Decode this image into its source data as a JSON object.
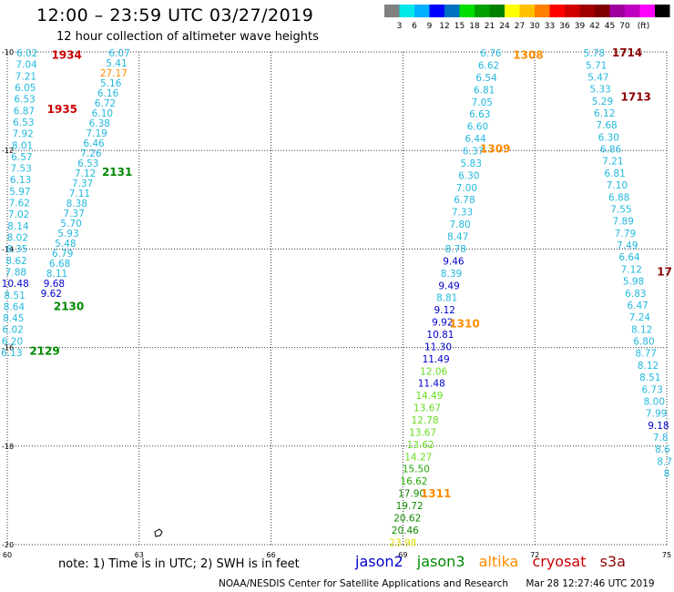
{
  "header": {
    "title": "12:00 – 23:59 UTC 03/27/2019",
    "subtitle": "12 hour collection of altimeter wave heights"
  },
  "colorbar": {
    "colors": [
      "#808080",
      "#00e8e8",
      "#00b0ff",
      "#0000ff",
      "#0070c0",
      "#00dd00",
      "#00a000",
      "#008000",
      "#ffff00",
      "#ffc000",
      "#ff8000",
      "#ff0000",
      "#d00000",
      "#a00000",
      "#800000",
      "#a000a0",
      "#c000c0",
      "#ff00ff",
      "#000000"
    ],
    "labels": [
      "3",
      "6",
      "9",
      "12",
      "15",
      "18",
      "21",
      "24",
      "27",
      "30",
      "33",
      "36",
      "39",
      "42",
      "45",
      "70",
      "(ft)"
    ]
  },
  "chart_data": {
    "type": "scatter",
    "xlim": [
      60,
      75
    ],
    "ylim": [
      -20,
      -10
    ],
    "x_ticks": [
      "60",
      "63",
      "66",
      "69",
      "72",
      "75"
    ],
    "y_ticks": [
      "-10",
      "-12",
      "-14",
      "-16",
      "-18",
      "-20"
    ],
    "grid": true,
    "series_colors": {
      "jason2": "#0000cc",
      "jason3": "#008800",
      "altika": "#ff8c00",
      "cryosat": "#cc0000",
      "s3a": "#8b0000"
    },
    "tracks": [
      {
        "id": "track-a",
        "x0": 60.45,
        "x1": 60.1,
        "values": [
          "6.02",
          "7.04",
          "7.21",
          "6.05",
          "6.53",
          "6.87",
          "6.53",
          "7.92",
          "8.01",
          "6.57",
          "7.53",
          "6.13",
          "5.97",
          "7.62",
          "7.02",
          "8.14",
          "8.02",
          "8.35",
          "8.62",
          "7.88",
          "10.48",
          "8.51",
          "8.64",
          "8.45",
          "6.02",
          "6.20",
          "6.13"
        ]
      },
      {
        "id": "track-b",
        "x0": 62.55,
        "x1": 61.0,
        "values": [
          "6.07",
          "5.41",
          "27.17",
          "5.16",
          "6.16",
          "6.72",
          "6.10",
          "6.38",
          "7.19",
          "6.46",
          "7.26",
          "6.53",
          "7.12",
          "7.37",
          "7.11",
          "8.38",
          "7.37",
          "5.70",
          "5.93",
          "5.48",
          "6.79",
          "6.68",
          "8.11",
          "9.68",
          "9.62"
        ]
      },
      {
        "id": "track-c",
        "x0": 71.0,
        "x1": 69.0,
        "values": [
          "6.76",
          "6.62",
          "6.54",
          "6.81",
          "7.05",
          "6.63",
          "6.60",
          "6.44",
          "6.37",
          "5.83",
          "6.30",
          "7.00",
          "6.78",
          "7.33",
          "7.80",
          "8.47",
          "8.78",
          "9.46",
          "8.39",
          "9.49",
          "8.81",
          "9.12",
          "9.92",
          "10.81",
          "11.30",
          "11.49",
          "12.06",
          "11.48",
          "14.49",
          "13.67",
          "12.78",
          "13.67",
          "13.62",
          "14.27",
          "15.50",
          "16.62",
          "17.90",
          "19.72",
          "20.62",
          "20.46",
          "23.98"
        ]
      },
      {
        "id": "track-d",
        "x0": 73.35,
        "x1": 75.0,
        "values": [
          "5.78",
          "5.71",
          "5.47",
          "5.33",
          "5.29",
          "6.12",
          "7.68",
          "6.30",
          "6.86",
          "7.21",
          "6.81",
          "7.10",
          "6.88",
          "7.55",
          "7.89",
          "7.79",
          "7.49",
          "6.64",
          "7.12",
          "5.98",
          "6.83",
          "6.47",
          "7.24",
          "8.12",
          "6.80",
          "8.77",
          "8.12",
          "8.51",
          "6.73",
          "8.00",
          "7.99",
          "9.18",
          "7.8",
          "8.6",
          "8.7",
          "8"
        ]
      }
    ],
    "value_colors": {
      "27.17": "#ff8c00",
      "9.68": "#0000cc",
      "9.62": "#0000cc",
      "10.48": "#0000cc",
      "9.46": "#0000cc",
      "9.49": "#0000cc",
      "9.12": "#0000cc",
      "9.92": "#0000cc",
      "10.81": "#0000cc",
      "11.30": "#0000cc",
      "11.49": "#0000cc",
      "11.48": "#0000cc",
      "9.18": "#0000cc",
      "12.06": "#66dd22",
      "14.49": "#66dd22",
      "13.67": "#66dd22",
      "12.78": "#66dd22",
      "13.62": "#66dd22",
      "14.27": "#66dd22",
      "15.50": "#22aa00",
      "16.62": "#22aa00",
      "17.90": "#118800",
      "19.72": "#118800",
      "20.62": "#118800",
      "20.46": "#118800",
      "23.98": "#dddd00"
    },
    "pass_labels": [
      {
        "text": "1934",
        "lon": 61.35,
        "lat": -10.05,
        "color": "#cc0000"
      },
      {
        "text": "1935",
        "lon": 61.25,
        "lat": -11.15,
        "color": "#cc0000"
      },
      {
        "text": "2131",
        "lon": 62.5,
        "lat": -12.42,
        "color": "#008800"
      },
      {
        "text": "2130",
        "lon": 61.4,
        "lat": -15.15,
        "color": "#008800"
      },
      {
        "text": "2129",
        "lon": 60.85,
        "lat": -16.05,
        "color": "#008800"
      },
      {
        "text": "1308",
        "lon": 71.85,
        "lat": -10.05,
        "color": "#ff8c00"
      },
      {
        "text": "1309",
        "lon": 71.1,
        "lat": -11.95,
        "color": "#ff8c00"
      },
      {
        "text": "1310",
        "lon": 70.4,
        "lat": -15.5,
        "color": "#ff8c00"
      },
      {
        "text": "1311",
        "lon": 69.75,
        "lat": -18.95,
        "color": "#ff8c00"
      },
      {
        "text": "1714",
        "lon": 74.1,
        "lat": -10.0,
        "color": "#8b0000"
      },
      {
        "text": "1713",
        "lon": 74.3,
        "lat": -10.9,
        "color": "#8b0000"
      },
      {
        "text": "17",
        "lon": 74.95,
        "lat": -14.45,
        "color": "#8b0000"
      }
    ]
  },
  "note": {
    "text": "note:  1) Time is in UTC;  2) SWH is in feet"
  },
  "legend": {
    "items": [
      {
        "label": "jason2",
        "color": "#0000cc"
      },
      {
        "label": "jason3",
        "color": "#008800"
      },
      {
        "label": "altika",
        "color": "#ff8c00"
      },
      {
        "label": "cryosat",
        "color": "#cc0000"
      },
      {
        "label": "s3a",
        "color": "#8b0000"
      }
    ]
  },
  "footer": {
    "credit": "NOAA/NESDIS Center for Satellite Applications and Research",
    "timestamp": "Mar 28 12:27:46 UTC 2019"
  }
}
